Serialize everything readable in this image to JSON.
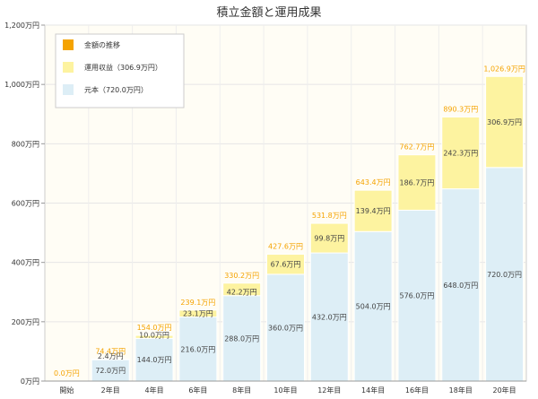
{
  "chart_data": {
    "type": "bar",
    "stacked": true,
    "title": "積立金額と運用成果",
    "categories": [
      "開始",
      "2年目",
      "4年目",
      "6年目",
      "8年目",
      "10年目",
      "12年目",
      "14年目",
      "16年目",
      "18年目",
      "20年目"
    ],
    "series": [
      {
        "name": "元本（720.0万円）",
        "color": "#ddeef6",
        "values": [
          0,
          72.0,
          144.0,
          216.0,
          288.0,
          360.0,
          432.0,
          504.0,
          576.0,
          648.0,
          720.0
        ],
        "labels": [
          "",
          "72.0万円",
          "144.0万円",
          "216.0万円",
          "288.0万円",
          "360.0万円",
          "432.0万円",
          "504.0万円",
          "576.0万円",
          "648.0万円",
          "720.0万円"
        ]
      },
      {
        "name": "運用収益（306.9万円）",
        "color": "#fdf3a0",
        "values": [
          0,
          2.4,
          10.0,
          23.1,
          42.2,
          67.6,
          99.8,
          139.4,
          186.7,
          242.3,
          306.9
        ],
        "labels": [
          "",
          "2.4万円",
          "10.0万円",
          "23.1万円",
          "42.2万円",
          "67.6万円",
          "99.8万円",
          "139.4万円",
          "186.7万円",
          "242.3万円",
          "306.9万円"
        ]
      }
    ],
    "totals": {
      "name": "金額の推移",
      "color": "#f5a300",
      "values": [
        0.0,
        74.4,
        154.0,
        239.1,
        330.2,
        427.6,
        531.8,
        643.4,
        762.7,
        890.3,
        1026.9
      ],
      "labels": [
        "0.0万円",
        "74.4万円",
        "154.0万円",
        "239.1万円",
        "330.2万円",
        "427.6万円",
        "531.8万円",
        "643.4万円",
        "762.7万円",
        "890.3万円",
        "1,026.9万円"
      ]
    },
    "ylim": [
      0,
      1200
    ],
    "yticks": [
      0,
      200,
      400,
      600,
      800,
      1000,
      1200
    ],
    "ytick_labels": [
      "0万円",
      "200万円",
      "400万円",
      "600万円",
      "800万円",
      "1,000万円",
      "1,200万円"
    ],
    "grid": true,
    "legend": "top-left"
  }
}
